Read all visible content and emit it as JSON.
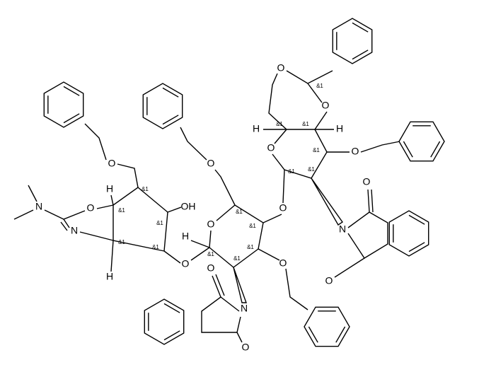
{
  "labels": [
    "O",
    "O",
    "&1",
    "H",
    "&1",
    "&1",
    "H",
    "O",
    "&1",
    "O",
    "&1",
    "&1",
    "O",
    "O",
    "N",
    "O",
    "O",
    "O",
    "&1",
    "&1",
    "H",
    "&1",
    "&1",
    "&1",
    "O",
    "O",
    "O",
    "N",
    "O",
    "OH",
    "&1",
    "&1",
    "&1",
    "O",
    "O",
    "H",
    "&1",
    "&1",
    "H",
    "N",
    "N"
  ]
}
